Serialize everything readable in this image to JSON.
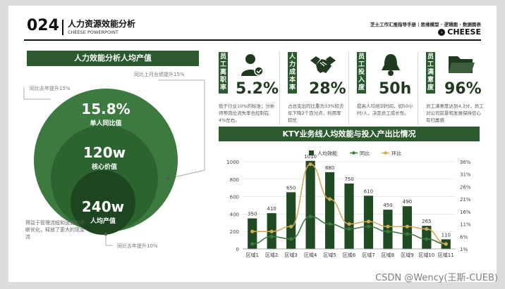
{
  "header": {
    "number": "024",
    "title": "人力资源效能分析",
    "subtitle": "CHEESE POWERPOINT",
    "right_top": "芝士工作汇报指导手册｜思维模型 · 逻辑图 · 数据图表",
    "brand": "CHEESE"
  },
  "left": {
    "section_title": "人力效能分析人均产值",
    "note_top_right": "同比上月业绩提升15%",
    "note_top_left": "同比去年提升15%",
    "note_bottom_right": "同比去年提升10%",
    "note_bottom_left": "得益于管理流程和运营的不断优化，释放了更大的现金流",
    "circles": [
      {
        "value": "15.8%",
        "label": "单人同比值"
      },
      {
        "value": "120w",
        "label": "核心价值"
      },
      {
        "value": "240w",
        "label": "人均产值"
      }
    ]
  },
  "kpis": [
    {
      "label": "员工离职率",
      "icon": "user-check-icon",
      "value": "5.2%",
      "desc": "低于行业10%的标准；分析师等岗位流失率也控制在4%左右。"
    },
    {
      "label": "人力成本率",
      "icon": "handshake-icon",
      "value": "28%",
      "desc": "占总支出的比重为33%较去年下降2个百分点，利用率较优"
    },
    {
      "label": "员工投入度",
      "icon": "bell-icon",
      "value": "50h",
      "desc": "提高人均培训时间，如50小时/人，决定员工成长性。"
    },
    {
      "label": "员工满意度",
      "icon": "folder-icon",
      "value": "96%",
      "desc": "员工满意度达到4.3分，员工对公司前景和发展保持信心有归属感"
    }
  ],
  "chart_title": "KTY业务线人均效能与投入产出比情况",
  "chart_data": {
    "type": "bar",
    "categories": [
      "区域1",
      "区域2",
      "区域3",
      "区域4",
      "区域5",
      "区域6",
      "区域7",
      "区域8",
      "区域9",
      "区域10",
      "区域11"
    ],
    "series": [
      {
        "name": "人均效能",
        "type": "bar",
        "axis": "left",
        "values": [
          350,
          410,
          650,
          1010,
          880,
          750,
          610,
          450,
          490,
          265,
          110
        ],
        "color": "#1f4a22"
      },
      {
        "name": "同比",
        "type": "line",
        "axis": "right",
        "values": [
          3,
          6,
          5,
          14,
          11,
          9,
          10,
          8,
          7,
          5,
          3
        ],
        "color": "#3c7a3f"
      },
      {
        "name": "环比",
        "type": "line",
        "axis": "right",
        "values": [
          8,
          8,
          10,
          35,
          21,
          11,
          12,
          10,
          10,
          9,
          3
        ],
        "color": "#d1a95a"
      }
    ],
    "yticks_left": [
      "0",
      "200",
      "400",
      "600",
      "800",
      "1000"
    ],
    "yticks_right": [
      "1%",
      "6%",
      "11%",
      "16%",
      "21%",
      "26%",
      "31%",
      "36%"
    ],
    "ylim": [
      0,
      1000
    ],
    "y2lim": [
      1,
      36
    ],
    "legend_position": "top-center",
    "grid": "horizontal"
  },
  "watermark": "CSDN @Wency(王斯-CUEB)"
}
